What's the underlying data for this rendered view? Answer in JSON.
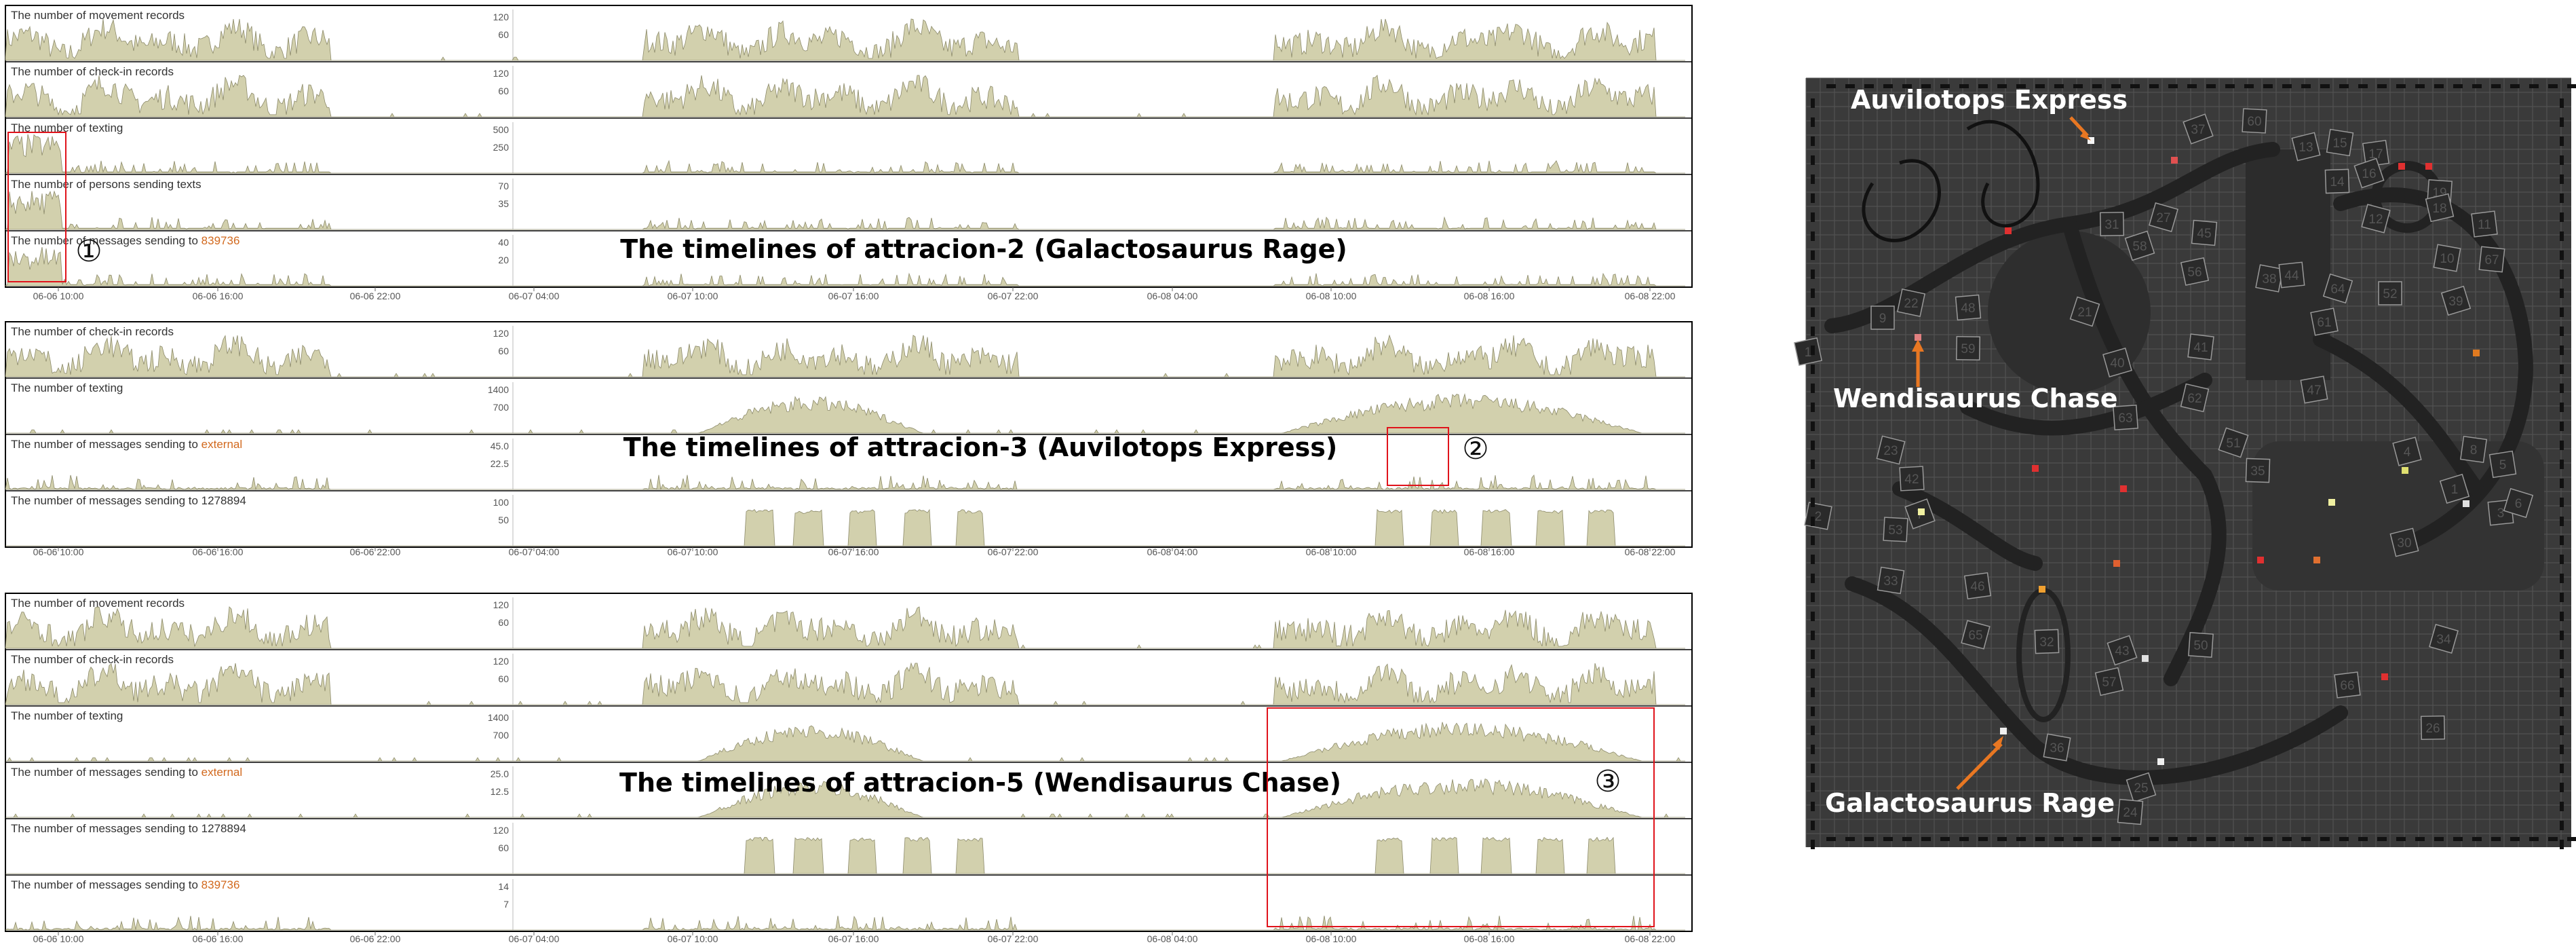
{
  "colors": {
    "area_fill": "#d2d0ad",
    "area_stroke": "#8c8a6a",
    "highlight": "#e0131b",
    "orange_text": "#d2691e",
    "map_bg": "#3a3a3a",
    "arrow": "#e87722"
  },
  "x_ticks": [
    "06-06 10:00",
    "06-06 16:00",
    "06-06 22:00",
    "06-07 04:00",
    "06-07 10:00",
    "06-07 16:00",
    "06-07 22:00",
    "06-08 04:00",
    "06-08 10:00",
    "06-08 16:00",
    "06-08 22:00"
  ],
  "chart_data": [
    {
      "type": "area",
      "title": "The timelines of attracion-2 (Galactosaurus Rage)",
      "annotation": "①",
      "rows": [
        {
          "prefix": "The number of movement records",
          "ticks": [
            "120",
            "60"
          ]
        },
        {
          "prefix": "The number of check-in records",
          "ticks": [
            "120",
            "60"
          ]
        },
        {
          "prefix": "The number of texting",
          "ticks": [
            "500",
            "250"
          ]
        },
        {
          "prefix": "The number of persons sending texts",
          "ticks": [
            "70",
            "35"
          ]
        },
        {
          "prefix": "The number of messages sending to ",
          "target": "839736",
          "ticks": [
            "40",
            "20"
          ]
        }
      ]
    },
    {
      "type": "area",
      "title": "The timelines of attracion-3 (Auvilotops Express)",
      "annotation": "②",
      "rows": [
        {
          "prefix": "The number of check-in records",
          "ticks": [
            "120",
            "60"
          ]
        },
        {
          "prefix": "The number of texting",
          "ticks": [
            "1400",
            "700"
          ]
        },
        {
          "prefix": "The number of messages sending to ",
          "target": "external",
          "ticks": [
            "45.0",
            "22.5"
          ]
        },
        {
          "prefix": "The number of messages sending to 1278894",
          "ticks": [
            "100",
            "50"
          ]
        }
      ]
    },
    {
      "type": "area",
      "title": "The timelines of attracion-5 (Wendisaurus Chase)",
      "annotation": "③",
      "rows": [
        {
          "prefix": "The number of movement records",
          "ticks": [
            "120",
            "60"
          ]
        },
        {
          "prefix": "The number of check-in records",
          "ticks": [
            "120",
            "60"
          ]
        },
        {
          "prefix": "The number of texting",
          "ticks": [
            "1400",
            "700"
          ]
        },
        {
          "prefix": "The number of messages sending to ",
          "target": "external",
          "ticks": [
            "25.0",
            "12.5"
          ]
        },
        {
          "prefix": "The number of messages sending to 1278894",
          "ticks": [
            "120",
            "60"
          ]
        },
        {
          "prefix": "The number of messages sending to ",
          "target": "839736",
          "ticks": [
            "14",
            "7"
          ]
        }
      ]
    }
  ],
  "map": {
    "labels": [
      "Auvilotops Express",
      "Wendisaurus Chase",
      "Galactosaurus Rage"
    ],
    "numbers": [
      "37",
      "60",
      "13",
      "15",
      "17",
      "12",
      "14",
      "16",
      "19",
      "18",
      "10",
      "11",
      "27",
      "31",
      "58",
      "45",
      "56",
      "38",
      "44",
      "64",
      "52",
      "39",
      "67",
      "61",
      "22",
      "48",
      "21",
      "59",
      "40",
      "41",
      "47",
      "62",
      "63",
      "51",
      "35",
      "4",
      "8",
      "5",
      "23",
      "42",
      "7",
      "53",
      "30",
      "33",
      "46",
      "65",
      "32",
      "43",
      "50",
      "57",
      "36",
      "66",
      "34",
      "26",
      "25",
      "24",
      "1",
      "2",
      "3",
      "6",
      "9",
      "1"
    ]
  }
}
